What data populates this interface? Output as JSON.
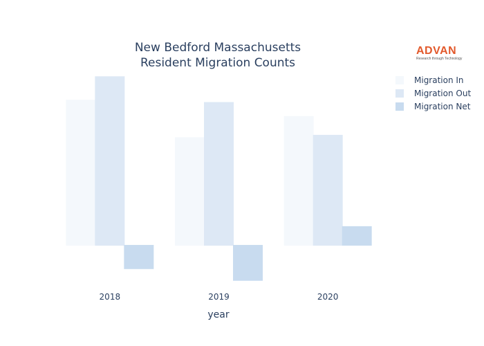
{
  "logo": {
    "wordmark": "ADVAN",
    "tagline": "Research through Technology"
  },
  "chart_data": {
    "type": "bar",
    "title_lines": [
      "New Bedford Massachusetts",
      "Resident Migration Counts"
    ],
    "xlabel": "year",
    "ylabel": "",
    "categories": [
      "2018",
      "2019",
      "2020"
    ],
    "series": [
      {
        "name": "Migration In",
        "values": [
          6200,
          4600,
          5500
        ],
        "color": "#f4f8fc"
      },
      {
        "name": "Migration Out",
        "values": [
          7200,
          6100,
          4700
        ],
        "color": "#dde8f5"
      },
      {
        "name": "Migration Net",
        "values": [
          -1000,
          -1500,
          800
        ],
        "color": "#c8dbef"
      }
    ],
    "ylim": [
      -1700,
      7400
    ],
    "grid": false,
    "legend_position": "top-right"
  }
}
